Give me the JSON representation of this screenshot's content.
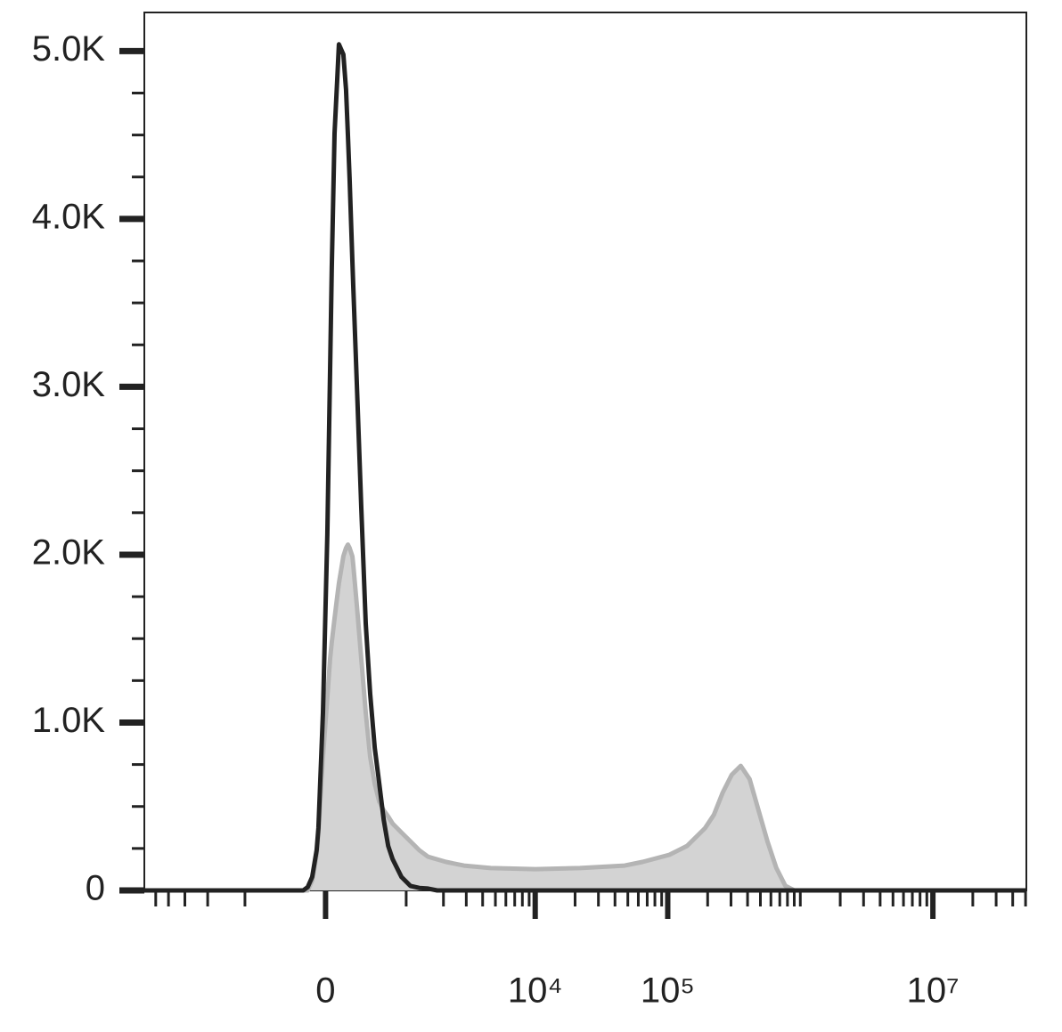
{
  "chart_data": {
    "type": "histogram-overlay",
    "x": [
      -6100,
      -299,
      -209,
      -165,
      -123,
      -82,
      -65,
      -24,
      16,
      41,
      57,
      82,
      107,
      123,
      165,
      191,
      209,
      226,
      253,
      262,
      299,
      347,
      397,
      449,
      505,
      563,
      625,
      690,
      759,
      911,
      1085,
      1284,
      1512,
      1785,
      2096,
      2878,
      4610,
      10040,
      21800,
      47300,
      64500,
      102800,
      140000,
      191000,
      223000,
      260000,
      304000,
      355000,
      415000,
      484000,
      565000,
      660000,
      771000,
      900000,
      50700000
    ],
    "series": [
      {
        "color": "#b4b4b4",
        "fill": "#d3d3d3",
        "values": [
          0,
          0,
          0,
          0,
          60,
          212,
          350,
          795,
          1150,
          1380,
          1480,
          1620,
          1750,
          1830,
          1990,
          2040,
          2060,
          2040,
          1990,
          1940,
          1700,
          1380,
          1060,
          795,
          636,
          530,
          477,
          440,
          398,
          345,
          292,
          239,
          201,
          185,
          170,
          148,
          133,
          127,
          133,
          148,
          170,
          212,
          265,
          371,
          451,
          583,
          689,
          742,
          663,
          477,
          292,
          133,
          27,
          0,
          0
        ]
      },
      {
        "color": "#222222",
        "values": [
          0,
          0,
          0,
          20,
          80,
          240,
          372,
          1060,
          2120,
          3100,
          3710,
          4510,
          4830,
          5040,
          4980,
          4770,
          4500,
          4240,
          3750,
          3600,
          3020,
          2280,
          1590,
          1170,
          850,
          640,
          420,
          265,
          186,
          80,
          27,
          15,
          11,
          0,
          0,
          0,
          0,
          0,
          0,
          0,
          0,
          0,
          0,
          0,
          0,
          0,
          0,
          0,
          0,
          0,
          0,
          0,
          0,
          0,
          0
        ]
      }
    ],
    "xscale": "biexponential",
    "xlim": [
      -6100,
      50700000
    ],
    "xticks": [
      0,
      {
        "value": 10000,
        "label": "10⁴"
      },
      {
        "value": 100000,
        "label": "10⁵"
      },
      {
        "value": 10000000,
        "label": "10⁷"
      }
    ],
    "xminorticks": [
      -5000,
      -4000,
      -3000,
      -2000,
      -1000,
      1000,
      2000,
      3000,
      4000,
      5000,
      6000,
      7000,
      8000,
      9000,
      20000,
      30000,
      40000,
      50000,
      60000,
      70000,
      80000,
      90000,
      200000,
      300000,
      400000,
      500000,
      600000,
      700000,
      800000,
      900000,
      1000000,
      2000000,
      3000000,
      4000000,
      5000000,
      6000000,
      7000000,
      8000000,
      9000000,
      20000000,
      30000000,
      40000000,
      50000000
    ],
    "ylim": [
      0,
      5230
    ],
    "yticks": [
      0,
      {
        "value": 1000,
        "label": "1.0K"
      },
      {
        "value": 2000,
        "label": "2.0K"
      },
      {
        "value": 3000,
        "label": "3.0K"
      },
      {
        "value": 4000,
        "label": "4.0K"
      },
      {
        "value": 5000,
        "label": "5.0K"
      }
    ],
    "yminorticks": [
      250,
      500,
      750,
      1250,
      1500,
      1750,
      2250,
      2500,
      2750,
      3250,
      3500,
      3750,
      4250,
      4500,
      4750
    ]
  }
}
